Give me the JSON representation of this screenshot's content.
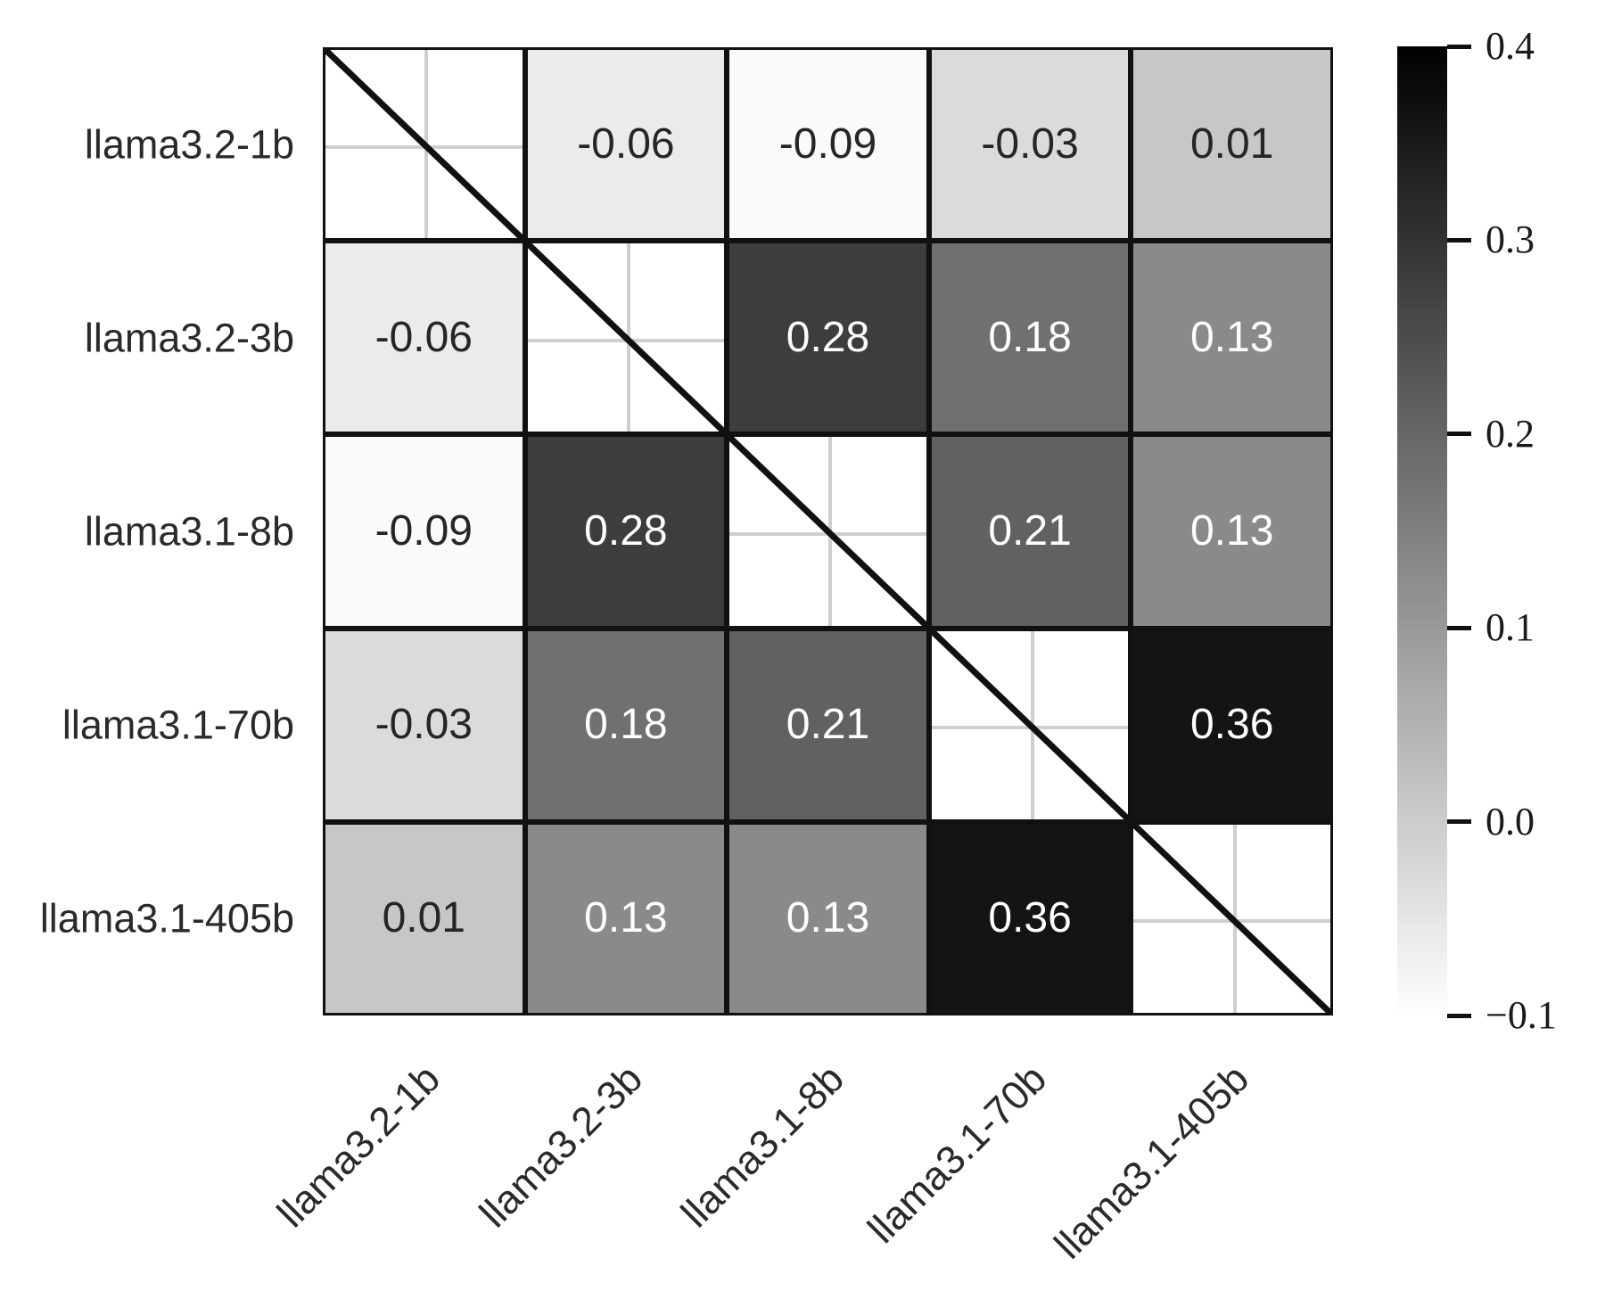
{
  "chart_data": {
    "type": "heatmap",
    "title": "",
    "row_labels": [
      "llama3.2-1b",
      "llama3.2-3b",
      "llama3.1-8b",
      "llama3.1-70b",
      "llama3.1-405b"
    ],
    "col_labels": [
      "llama3.2-1b",
      "llama3.2-3b",
      "llama3.1-8b",
      "llama3.1-70b",
      "llama3.1-405b"
    ],
    "matrix": [
      [
        null,
        -0.06,
        -0.09,
        -0.03,
        0.01
      ],
      [
        -0.06,
        null,
        0.28,
        0.18,
        0.13
      ],
      [
        -0.09,
        0.28,
        null,
        0.21,
        0.13
      ],
      [
        -0.03,
        0.18,
        0.21,
        null,
        0.36
      ],
      [
        0.01,
        0.13,
        0.13,
        0.36,
        null
      ]
    ],
    "cell_text": [
      [
        "",
        "-0.06",
        "-0.09",
        "-0.03",
        "0.01"
      ],
      [
        "-0.06",
        "",
        "0.28",
        "0.18",
        "0.13"
      ],
      [
        "-0.09",
        "0.28",
        "",
        "0.21",
        "0.13"
      ],
      [
        "-0.03",
        "0.18",
        "0.21",
        "",
        "0.36"
      ],
      [
        "0.01",
        "0.13",
        "0.13",
        "0.36",
        ""
      ]
    ],
    "diagonal_style": "masked-white-with-diagonal-line-and-gridlines",
    "colorbar": {
      "orientation": "vertical",
      "position": "right",
      "vmin": -0.1,
      "vmax": 0.4,
      "tick_labels": [
        "0.4",
        "0.3",
        "0.2",
        "0.1",
        "0.0",
        "−0.1"
      ]
    },
    "colors": {
      "cmap_low": "#ffffff",
      "cmap_high": "#000000",
      "cell_border": "#111111",
      "diagonal_line": "#111111",
      "grid_line": "#cfcfcf",
      "dark_text": "#262626",
      "light_text": "#ffffff",
      "axis_label": "#2a2a2a",
      "colorbar_tick_label": "#1a1a1a",
      "background": "#ffffff"
    }
  }
}
